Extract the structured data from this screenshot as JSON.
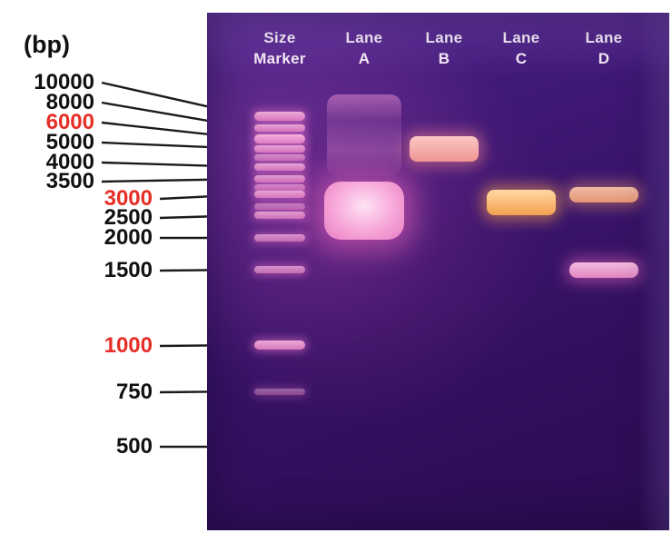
{
  "figure": {
    "unit_label": "(bp)",
    "size_markers": [
      {
        "label": "10000",
        "color": "#111111"
      },
      {
        "label": "8000",
        "color": "#111111"
      },
      {
        "label": "6000",
        "color": "#e62e26"
      },
      {
        "label": "5000",
        "color": "#111111"
      },
      {
        "label": "4000",
        "color": "#111111"
      },
      {
        "label": "3500",
        "color": "#111111"
      },
      {
        "label": "3000",
        "color": "#e62e26"
      },
      {
        "label": "2500",
        "color": "#111111"
      },
      {
        "label": "2000",
        "color": "#111111"
      },
      {
        "label": "1500",
        "color": "#111111"
      },
      {
        "label": "1000",
        "color": "#e62e26"
      },
      {
        "label": "750",
        "color": "#111111"
      },
      {
        "label": "500",
        "color": "#111111"
      }
    ],
    "lanes": [
      {
        "id": "marker",
        "header_lines": [
          "Size",
          "Marker"
        ]
      },
      {
        "id": "A",
        "header_lines": [
          "Lane",
          "A"
        ]
      },
      {
        "id": "B",
        "header_lines": [
          "Lane",
          "B"
        ]
      },
      {
        "id": "C",
        "header_lines": [
          "Lane",
          "C"
        ]
      },
      {
        "id": "D",
        "header_lines": [
          "Lane",
          "D"
        ]
      }
    ],
    "ladder_bands_bp": [
      10000,
      8000,
      6000,
      5000,
      4500,
      4000,
      3500,
      3200,
      3000,
      2700,
      2500,
      2000,
      1500,
      1000,
      750
    ],
    "sample_bands": [
      {
        "lane": "A",
        "approx_bp": 7000,
        "intensity": "faint",
        "hue": "pink",
        "smear": true
      },
      {
        "lane": "A",
        "approx_bp": 2600,
        "intensity": "bright",
        "hue": "pink",
        "blob": true
      },
      {
        "lane": "B",
        "approx_bp": 5000,
        "intensity": "bright",
        "hue": "salmon"
      },
      {
        "lane": "C",
        "approx_bp": 2800,
        "intensity": "bright",
        "hue": "orange"
      },
      {
        "lane": "D",
        "approx_bp": 3000,
        "intensity": "medium",
        "hue": "peach"
      },
      {
        "lane": "D",
        "approx_bp": 1500,
        "intensity": "medium",
        "hue": "pink"
      }
    ],
    "colors": {
      "gel_background": "#33105f",
      "band_pink": "#ee8cc9",
      "band_orange": "#f4a050",
      "label_red": "#e62e26",
      "label_black": "#111111",
      "header_text": "#f4eaf7"
    }
  }
}
